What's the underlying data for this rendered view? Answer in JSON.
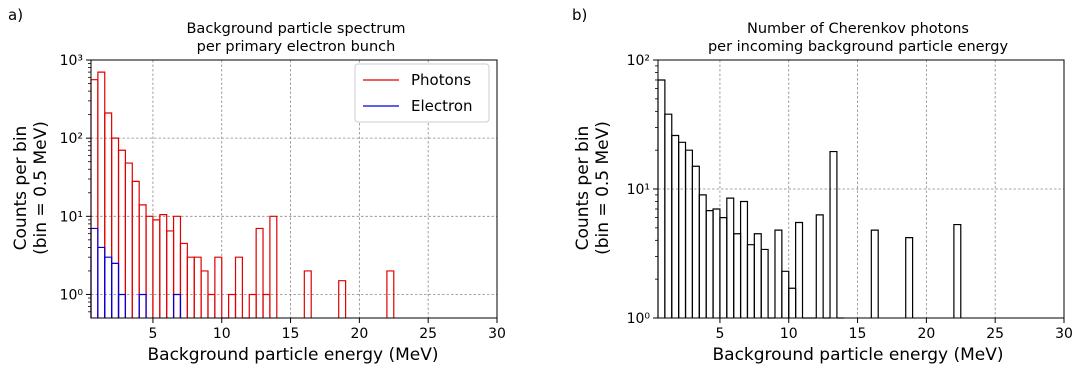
{
  "chart_data": [
    {
      "type": "histogram",
      "panel_label": "a)",
      "title": "Background particle spectrum\nper primary electron bunch",
      "xlabel": "Background particle energy (MeV)",
      "ylabel": "Counts per bin\n(bin = 0.5 MeV)",
      "xlim": [
        0.5,
        30
      ],
      "ylim": [
        0.5,
        1000
      ],
      "yscale": "log",
      "xticks": [
        5,
        10,
        15,
        20,
        25,
        30
      ],
      "yticks": [
        {
          "value": 1,
          "label": "10⁰"
        },
        {
          "value": 10,
          "label": "10¹"
        },
        {
          "value": 100,
          "label": "10²"
        },
        {
          "value": 1000,
          "label": "10³"
        }
      ],
      "grid": true,
      "legend_position": "top-right",
      "bin_width": 0.5,
      "series": [
        {
          "name": "Photons",
          "color": "#e00000",
          "bins": [
            [
              0.5,
              560
            ],
            [
              1.0,
              700
            ],
            [
              1.5,
              210
            ],
            [
              2.0,
              100
            ],
            [
              2.5,
              70
            ],
            [
              3.0,
              48
            ],
            [
              3.5,
              28
            ],
            [
              4.0,
              14
            ],
            [
              4.5,
              10
            ],
            [
              5.0,
              9
            ],
            [
              5.5,
              10.5
            ],
            [
              6.0,
              6.5
            ],
            [
              6.5,
              10
            ],
            [
              7.0,
              4.5
            ],
            [
              7.5,
              3
            ],
            [
              8.0,
              3
            ],
            [
              8.5,
              2
            ],
            [
              9.0,
              1
            ],
            [
              9.5,
              3
            ],
            [
              10.0,
              0
            ],
            [
              10.5,
              1
            ],
            [
              11.0,
              3
            ],
            [
              11.5,
              0
            ],
            [
              12.0,
              1
            ],
            [
              12.5,
              7
            ],
            [
              13.0,
              1
            ],
            [
              13.5,
              10
            ],
            [
              16.0,
              2
            ],
            [
              18.5,
              1.5
            ],
            [
              22.0,
              2
            ]
          ]
        },
        {
          "name": "Electron",
          "color": "#0000e0",
          "bins": [
            [
              0.5,
              7
            ],
            [
              1.0,
              4
            ],
            [
              1.5,
              3
            ],
            [
              2.0,
              2.5
            ],
            [
              2.5,
              1
            ],
            [
              4.0,
              1
            ],
            [
              6.5,
              1
            ]
          ]
        }
      ]
    },
    {
      "type": "histogram",
      "panel_label": "b)",
      "title": "Number of Cherenkov photons\nper incoming background particle energy",
      "xlabel": "Background particle energy (MeV)",
      "ylabel": "Counts per bin\n(bin = 0.5 MeV)",
      "xlim": [
        0.5,
        30
      ],
      "ylim": [
        1,
        100
      ],
      "yscale": "log",
      "xticks": [
        5,
        10,
        15,
        20,
        25,
        30
      ],
      "yticks": [
        {
          "value": 1,
          "label": "10⁰"
        },
        {
          "value": 10,
          "label": "10¹"
        },
        {
          "value": 100,
          "label": "10²"
        }
      ],
      "grid": true,
      "bin_width": 0.5,
      "series": [
        {
          "color": "#000000",
          "bins": [
            [
              0.5,
              70
            ],
            [
              1.0,
              38
            ],
            [
              1.5,
              26
            ],
            [
              2.0,
              23
            ],
            [
              2.5,
              20
            ],
            [
              3.0,
              15
            ],
            [
              3.5,
              9
            ],
            [
              4.0,
              6.8
            ],
            [
              4.5,
              7
            ],
            [
              5.0,
              6
            ],
            [
              5.5,
              8.5
            ],
            [
              6.0,
              4.5
            ],
            [
              6.5,
              8
            ],
            [
              7.0,
              3.7
            ],
            [
              7.5,
              4.5
            ],
            [
              8.0,
              3.4
            ],
            [
              8.5,
              1
            ],
            [
              9.0,
              4.8
            ],
            [
              9.5,
              2.3
            ],
            [
              10.0,
              1.7
            ],
            [
              10.5,
              5.5
            ],
            [
              11.0,
              1
            ],
            [
              11.5,
              1
            ],
            [
              12.0,
              6.3
            ],
            [
              12.5,
              1
            ],
            [
              13.0,
              19.5
            ],
            [
              13.5,
              1
            ],
            [
              16.0,
              4.8
            ],
            [
              18.5,
              4.2
            ],
            [
              22.0,
              5.3
            ]
          ]
        }
      ]
    }
  ]
}
